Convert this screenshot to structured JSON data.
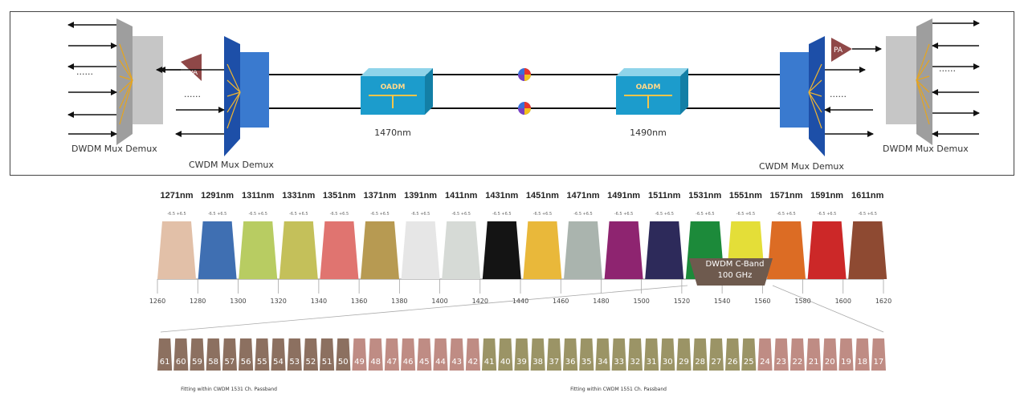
{
  "network": {
    "left_dwdm": "DWDM Mux Demux",
    "left_cwdm": "CWDM Mux Demux",
    "right_dwdm": "DWDM Mux Demux",
    "right_cwdm": "CWDM Mux Demux",
    "pa_left": "PA",
    "pa_right": "PA",
    "oadm_left": "OADM",
    "oadm_right": "OADM",
    "wavelength_left": "1470nm",
    "wavelength_right": "1490nm",
    "dots": "......"
  },
  "cwdm_grid": {
    "channels": [
      {
        "label": "1271nm",
        "color": "#e2c0a8"
      },
      {
        "label": "1291nm",
        "color": "#3f6fb2"
      },
      {
        "label": "1311nm",
        "color": "#b8cc62"
      },
      {
        "label": "1331nm",
        "color": "#c4c05a"
      },
      {
        "label": "1351nm",
        "color": "#e07470"
      },
      {
        "label": "1371nm",
        "color": "#b79a52"
      },
      {
        "label": "1391nm",
        "color": "#e6e6e6"
      },
      {
        "label": "1411nm",
        "color": "#d6dad6"
      },
      {
        "label": "1431nm",
        "color": "#141414"
      },
      {
        "label": "1451nm",
        "color": "#e9b83a"
      },
      {
        "label": "1471nm",
        "color": "#aab4ae"
      },
      {
        "label": "1491nm",
        "color": "#8e2470"
      },
      {
        "label": "1511nm",
        "color": "#2d2a5a"
      },
      {
        "label": "1531nm",
        "color": "#1c8a3a"
      },
      {
        "label": "1551nm",
        "color": "#e4de38"
      },
      {
        "label": "1571nm",
        "color": "#dc6c24"
      },
      {
        "label": "1591nm",
        "color": "#cc2828"
      },
      {
        "label": "1611nm",
        "color": "#8e4a32"
      }
    ],
    "tolerance_minus": "-6.5",
    "tolerance_plus": "+6.5",
    "axis_ticks": [
      "1260",
      "1280",
      "1300",
      "1320",
      "1340",
      "1360",
      "1380",
      "1400",
      "1420",
      "1440",
      "1460",
      "1480",
      "1500",
      "1520",
      "1540",
      "1560",
      "1580",
      "1600",
      "1620"
    ],
    "dwdm_band_line1": "DWDM C-Band",
    "dwdm_band_line2": "100 GHz"
  },
  "dwdm_channels": {
    "numbers": [
      "61",
      "60",
      "59",
      "58",
      "57",
      "56",
      "55",
      "54",
      "53",
      "52",
      "51",
      "50",
      "49",
      "48",
      "47",
      "46",
      "45",
      "44",
      "43",
      "42",
      "41",
      "40",
      "39",
      "38",
      "37",
      "36",
      "35",
      "34",
      "33",
      "32",
      "31",
      "30",
      "29",
      "28",
      "27",
      "26",
      "25",
      "24",
      "23",
      "22",
      "21",
      "20",
      "19",
      "18",
      "17"
    ],
    "group_colors": [
      "#8c7060",
      "#bf8c84",
      "#9b9466",
      "#bf8c84"
    ],
    "group_sizes": [
      12,
      8,
      17,
      8
    ],
    "note_left": "Fitting within CWDM 1531 Ch. Passband",
    "note_right": "Fitting within CWDM 1551 Ch. Passband"
  }
}
